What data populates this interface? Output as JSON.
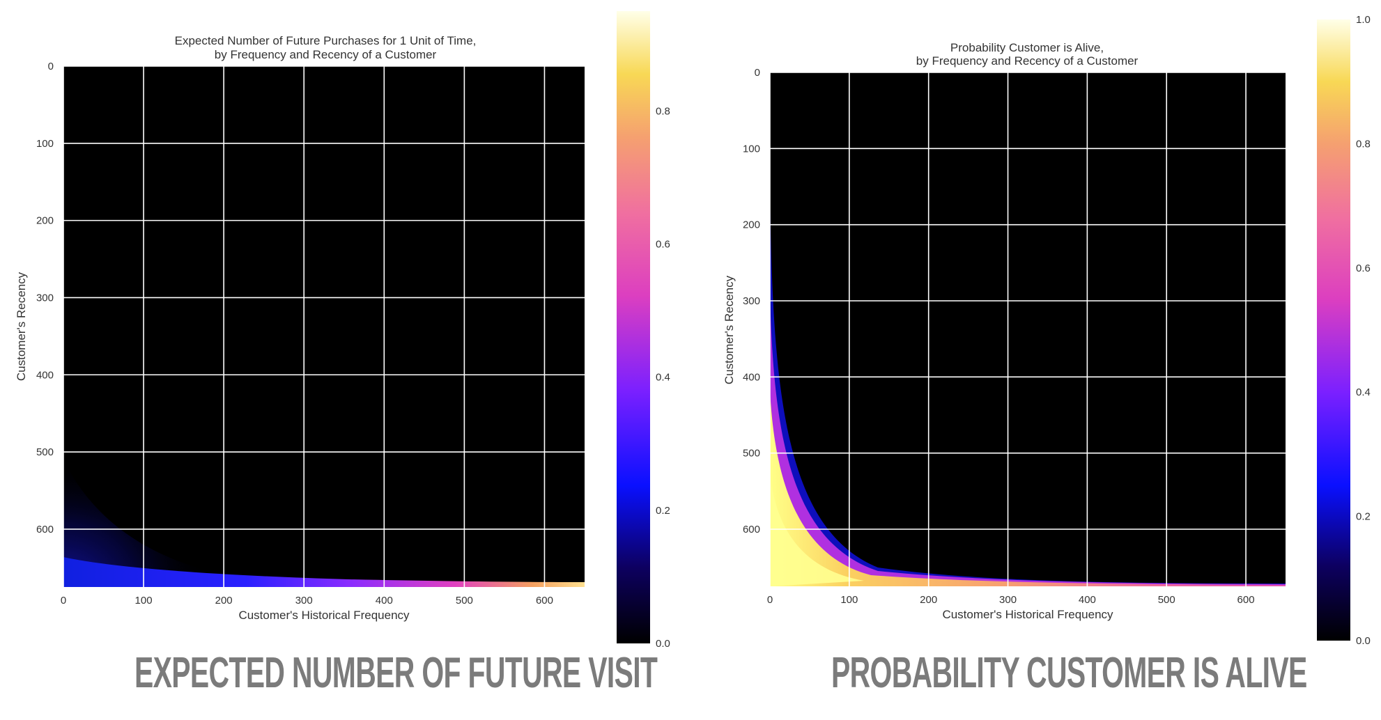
{
  "charts": [
    {
      "title_line1": "Expected Number of Future Purchases for 1 Unit of Time,",
      "title_line2": "by Frequency and Recency of a Customer",
      "xlabel": "Customer's Historical Frequency",
      "ylabel": "Customer's Recency",
      "caption": "EXPECTED NUMBER OF FUTURE VISIT",
      "colorbar_ticks": [
        "0.0",
        "0.2",
        "0.4",
        "0.6",
        "0.8"
      ]
    },
    {
      "title_line1": "Probability Customer is Alive,",
      "title_line2": "by Frequency and Recency of a Customer",
      "xlabel": "Customer's Historical Frequency",
      "ylabel": "Customer's Recency",
      "caption": "PROBABILITY CUSTOMER IS ALIVE",
      "colorbar_ticks": [
        "0.0",
        "0.2",
        "0.4",
        "0.6",
        "0.8",
        "1.0"
      ]
    }
  ],
  "chart_data": [
    {
      "type": "heatmap",
      "title": "Expected Number of Future Purchases for 1 Unit of Time, by Frequency and Recency of a Customer",
      "xlabel": "Customer's Historical Frequency",
      "ylabel": "Customer's Recency",
      "xlim": [
        0,
        650
      ],
      "ylim": [
        675,
        0
      ],
      "xticks": [
        0,
        100,
        200,
        300,
        400,
        500,
        600
      ],
      "yticks": [
        0,
        100,
        200,
        300,
        400,
        500,
        600
      ],
      "colormap": "plasma",
      "color_range": [
        0,
        0.95
      ],
      "colorbar_ticks": [
        0.0,
        0.2,
        0.4,
        0.6,
        0.8
      ],
      "grid": true,
      "description_values": [
        {
          "frequency": 0,
          "recency": 560,
          "value": 0.05
        },
        {
          "frequency": 0,
          "recency": 675,
          "value": 0.15
        },
        {
          "frequency": 200,
          "recency": 665,
          "value": 0.3
        },
        {
          "frequency": 400,
          "recency": 670,
          "value": 0.45
        },
        {
          "frequency": 640,
          "recency": 673,
          "value": 0.9
        }
      ]
    },
    {
      "type": "heatmap",
      "title": "Probability Customer is Alive, by Frequency and Recency of a Customer",
      "xlabel": "Customer's Historical Frequency",
      "ylabel": "Customer's Recency",
      "xlim": [
        0,
        650
      ],
      "ylim": [
        675,
        0
      ],
      "xticks": [
        0,
        100,
        200,
        300,
        400,
        500,
        600
      ],
      "yticks": [
        0,
        100,
        200,
        300,
        400,
        500,
        600
      ],
      "colormap": "plasma",
      "color_range": [
        0,
        1.0
      ],
      "colorbar_ticks": [
        0.0,
        0.2,
        0.4,
        0.6,
        0.8,
        1.0
      ],
      "grid": true,
      "description_values": [
        {
          "frequency": 0,
          "recency": 150,
          "value": 0.1
        },
        {
          "frequency": 0,
          "recency": 400,
          "value": 0.4
        },
        {
          "frequency": 0,
          "recency": 600,
          "value": 0.95
        },
        {
          "frequency": 100,
          "recency": 640,
          "value": 0.5
        },
        {
          "frequency": 300,
          "recency": 660,
          "value": 0.7
        },
        {
          "frequency": 600,
          "recency": 672,
          "value": 0.85
        }
      ]
    }
  ],
  "colors": {
    "axis_text": "#333333",
    "grid": "#ffffff",
    "caption": "#7b7b7b"
  }
}
